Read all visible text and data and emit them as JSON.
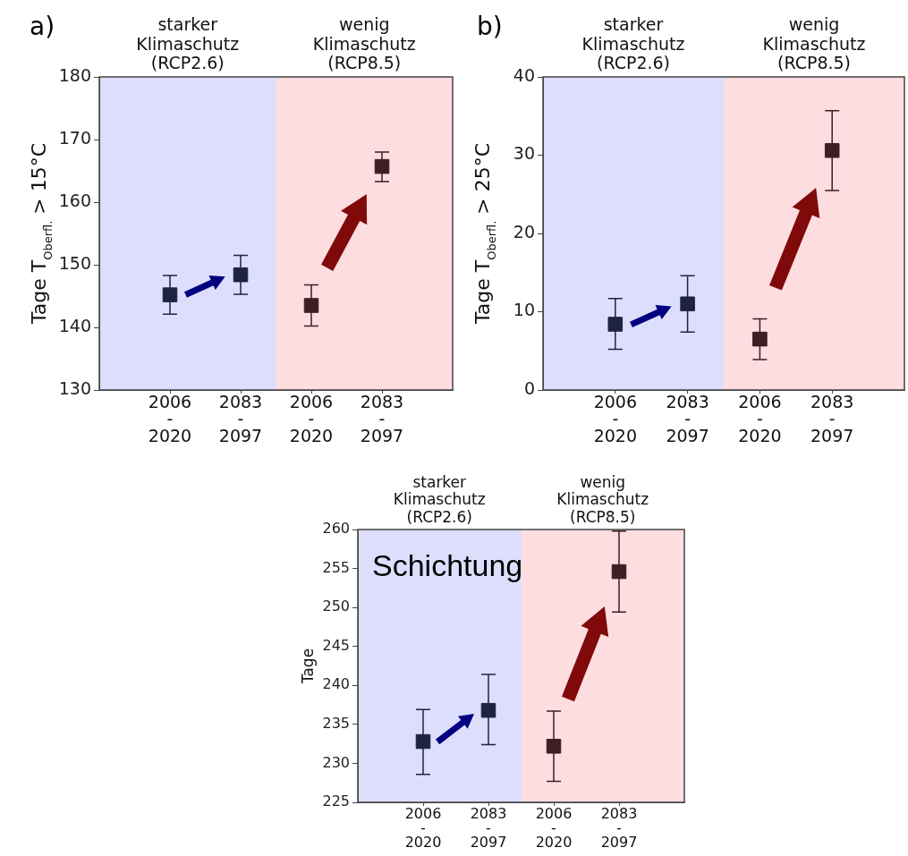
{
  "chart_data": [
    {
      "type": "scatter",
      "title": "a)",
      "ylabel": "Tage T$_{Oberfl.}$ > 15°C",
      "categories": [
        "2006 - 2020",
        "2083 - 2097",
        "2006 - 2020",
        "2083 - 2097"
      ],
      "ylim": [
        130,
        180
      ],
      "yticks": [
        130,
        140,
        150,
        160,
        170,
        180
      ],
      "grid": false,
      "legend": false,
      "marker": "square",
      "annotations": [
        "starker Klimaschutz (RCP2.6)",
        "wenig Klimaschutz (RCP8.5)"
      ],
      "series": [
        {
          "color": "#1f2342",
          "values": [
            145.2,
            148.4,
            null,
            null
          ],
          "errors": [
            [
              142.1,
              148.3
            ],
            [
              145.3,
              151.5
            ],
            null,
            null
          ]
        },
        {
          "color": "#3d1f23",
          "values": [
            null,
            null,
            143.5,
            165.7
          ],
          "errors": [
            null,
            null,
            [
              140.2,
              146.8
            ],
            [
              163.3,
              168.0
            ]
          ]
        }
      ]
    },
    {
      "type": "scatter",
      "title": "b)",
      "ylabel": "Tage T$_{Oberfl.}$ > 25°C",
      "categories": [
        "2006 - 2020",
        "2083 - 2097",
        "2006 - 2020",
        "2083 - 2097"
      ],
      "ylim": [
        0,
        40
      ],
      "yticks": [
        0,
        10,
        20,
        30,
        40
      ],
      "grid": false,
      "legend": false,
      "marker": "square",
      "annotations": [
        "starker Klimaschutz (RCP2.6)",
        "wenig Klimaschutz (RCP8.5)"
      ],
      "series": [
        {
          "color": "#1f2342",
          "values": [
            8.4,
            11.0,
            null,
            null
          ],
          "errors": [
            [
              5.2,
              11.7
            ],
            [
              7.4,
              14.6
            ],
            null,
            null
          ]
        },
        {
          "color": "#3d1f23",
          "values": [
            null,
            null,
            6.5,
            30.6
          ],
          "errors": [
            null,
            null,
            [
              3.9,
              9.1
            ],
            [
              25.5,
              35.7
            ]
          ]
        }
      ]
    },
    {
      "type": "scatter",
      "ylabel": "Tage",
      "categories": [
        "2006 - 2020",
        "2083 - 2097",
        "2006 - 2020",
        "2083 - 2097"
      ],
      "ylim": [
        225,
        260
      ],
      "yticks": [
        225,
        230,
        235,
        240,
        245,
        250,
        255,
        260
      ],
      "grid": false,
      "legend": false,
      "marker": "square",
      "annotations": [
        "starker Klimaschutz (RCP2.6)",
        "wenig Klimaschutz (RCP8.5)",
        "Schichtung"
      ],
      "series": [
        {
          "color": "#1f2342",
          "values": [
            232.8,
            236.8,
            null,
            null
          ],
          "errors": [
            [
              228.6,
              236.9
            ],
            [
              232.4,
              241.4
            ],
            null,
            null
          ]
        },
        {
          "color": "#3d1f23",
          "values": [
            null,
            null,
            232.2,
            254.6
          ],
          "errors": [
            null,
            null,
            [
              227.7,
              236.7
            ],
            [
              249.4,
              259.8
            ]
          ]
        }
      ]
    }
  ]
}
